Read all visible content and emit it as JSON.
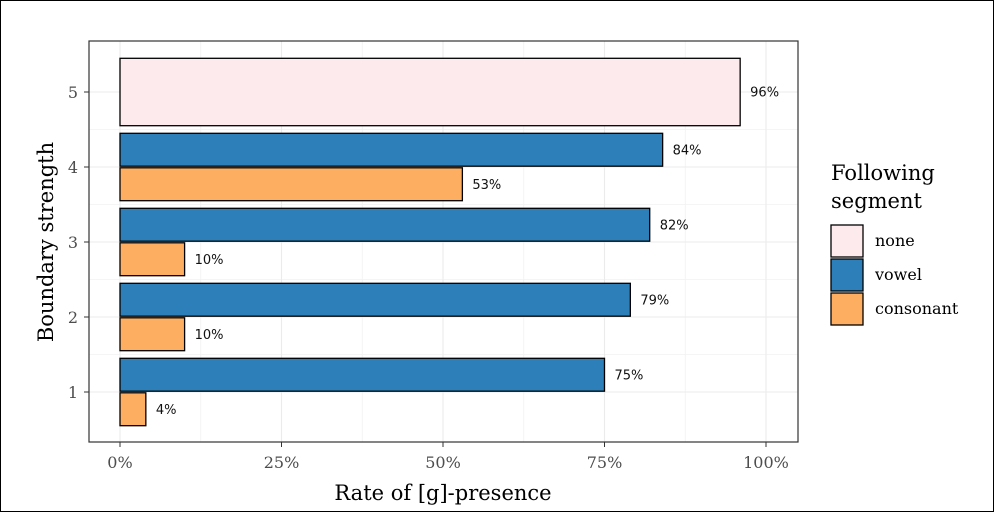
{
  "chart_data": {
    "type": "bar",
    "orientation": "horizontal",
    "xlabel": "Rate of [g]-presence",
    "ylabel": "Boundary strength",
    "xlim": [
      0,
      100
    ],
    "x_ticks": [
      "0%",
      "25%",
      "50%",
      "75%",
      "100%"
    ],
    "categories": [
      "1",
      "2",
      "3",
      "4",
      "5"
    ],
    "legend": {
      "title_lines": [
        "Following",
        "segment"
      ],
      "placement": "right",
      "entries": [
        {
          "name": "none",
          "color": "#fceaec"
        },
        {
          "name": "vowel",
          "color": "#2c7fb8"
        },
        {
          "name": "consonant",
          "color": "#fdae61"
        }
      ]
    },
    "bars": [
      {
        "category": "5",
        "series": "none",
        "value": 96,
        "label": "96%"
      },
      {
        "category": "4",
        "series": "vowel",
        "value": 84,
        "label": "84%"
      },
      {
        "category": "4",
        "series": "consonant",
        "value": 53,
        "label": "53%"
      },
      {
        "category": "3",
        "series": "vowel",
        "value": 82,
        "label": "82%"
      },
      {
        "category": "3",
        "series": "consonant",
        "value": 10,
        "label": "10%"
      },
      {
        "category": "2",
        "series": "vowel",
        "value": 79,
        "label": "79%"
      },
      {
        "category": "2",
        "series": "consonant",
        "value": 10,
        "label": "10%"
      },
      {
        "category": "1",
        "series": "vowel",
        "value": 75,
        "label": "75%"
      },
      {
        "category": "1",
        "series": "consonant",
        "value": 4,
        "label": "4%"
      }
    ],
    "grid": true,
    "theme": "bw"
  }
}
